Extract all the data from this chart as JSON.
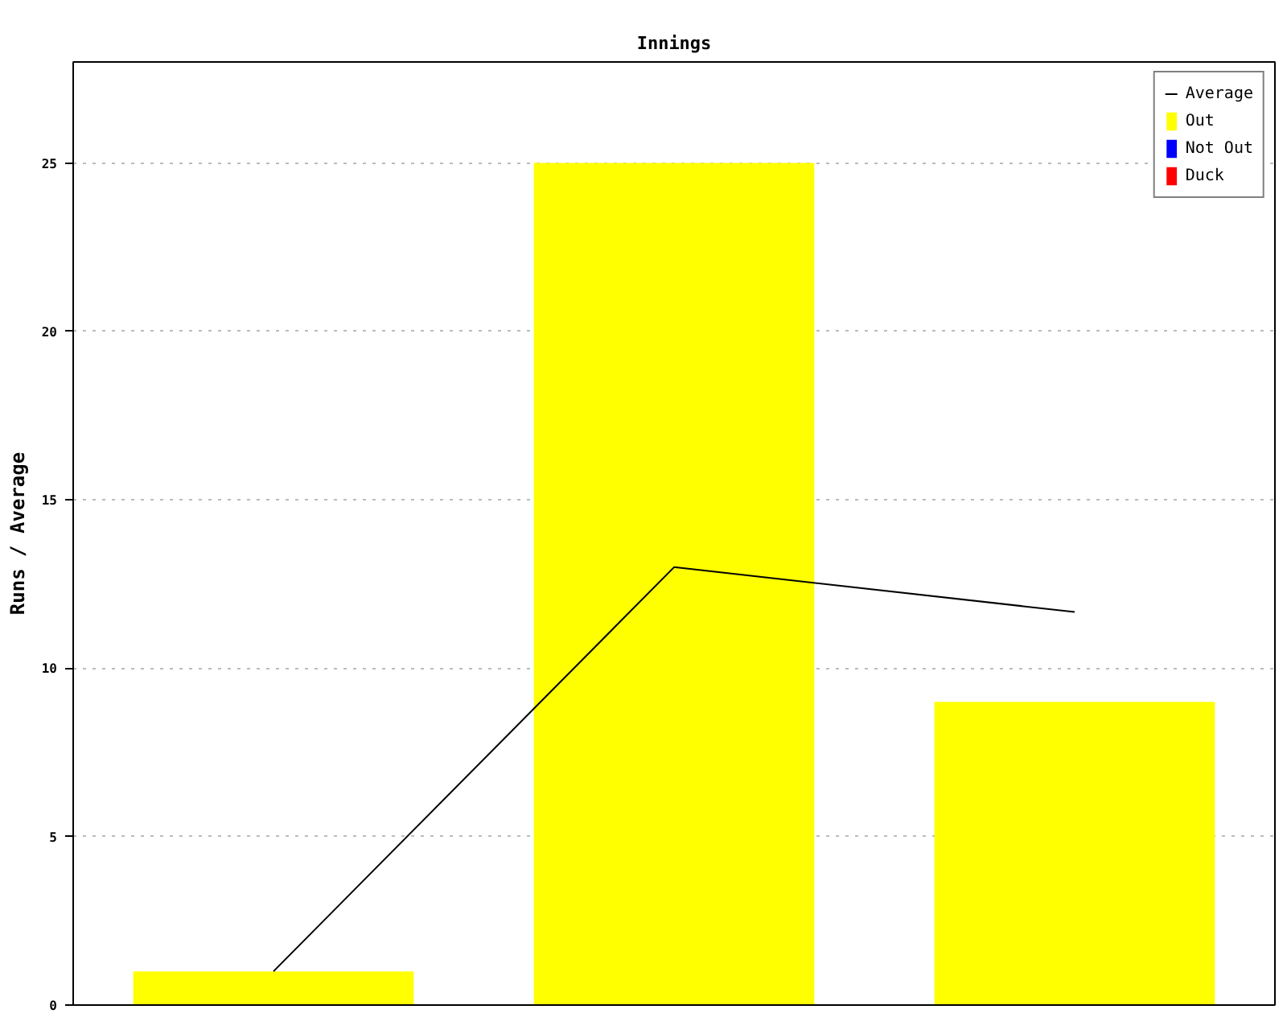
{
  "chart_data": {
    "type": "bar",
    "title": "Innings",
    "ylabel": "Runs / Average",
    "categories": [
      null,
      null,
      null
    ],
    "series": [
      {
        "name": "Average",
        "type": "line",
        "color": "#000000",
        "values": [
          1,
          13,
          11.67
        ]
      },
      {
        "name": "Out",
        "color": "#ffff00",
        "values": [
          1,
          25,
          9
        ]
      },
      {
        "name": "Not Out",
        "color": "#0000ff",
        "values": [
          null,
          null,
          null
        ]
      },
      {
        "name": "Duck",
        "color": "#ff0000",
        "values": [
          null,
          null,
          null
        ]
      }
    ],
    "stacked": true,
    "ylim": [
      0,
      28
    ],
    "yticks": [
      0,
      5,
      10,
      15,
      20,
      25
    ],
    "grid": "y",
    "legend": "top right",
    "tick_labels": "y",
    "line_style": "solid"
  }
}
